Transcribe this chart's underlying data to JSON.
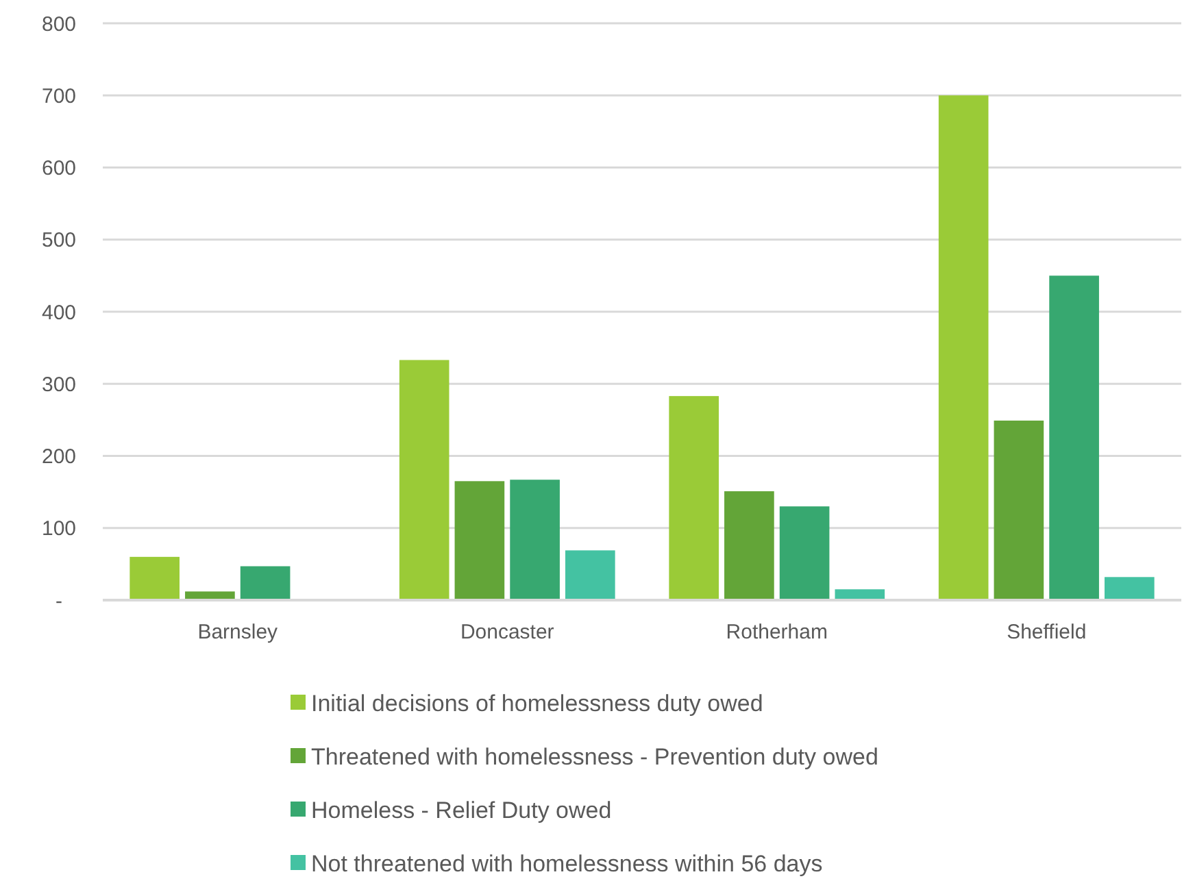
{
  "chart_data": {
    "type": "bar",
    "categories": [
      "Barnsley",
      "Doncaster",
      "Rotherham",
      "Sheffield"
    ],
    "series": [
      {
        "name": "Initial decisions of homelessness duty owed",
        "color": "#9acb37",
        "values": [
          60,
          333,
          283,
          700
        ]
      },
      {
        "name": "Threatened with homelessness - Prevention duty owed",
        "color": "#63a538",
        "values": [
          12,
          165,
          151,
          249
        ]
      },
      {
        "name": "Homeless - Relief Duty owed",
        "color": "#37a870",
        "values": [
          47,
          167,
          130,
          450
        ]
      },
      {
        "name": "Not threatened with homelessness within 56 days",
        "color": "#44c2a2",
        "values": [
          0,
          69,
          15,
          32
        ]
      }
    ],
    "ylim": [
      0,
      800
    ],
    "yticks": [
      {
        "value": 0,
        "label": "-"
      },
      100,
      200,
      300,
      400,
      500,
      600,
      700,
      800
    ],
    "grid": "y",
    "legend": "bottom"
  }
}
